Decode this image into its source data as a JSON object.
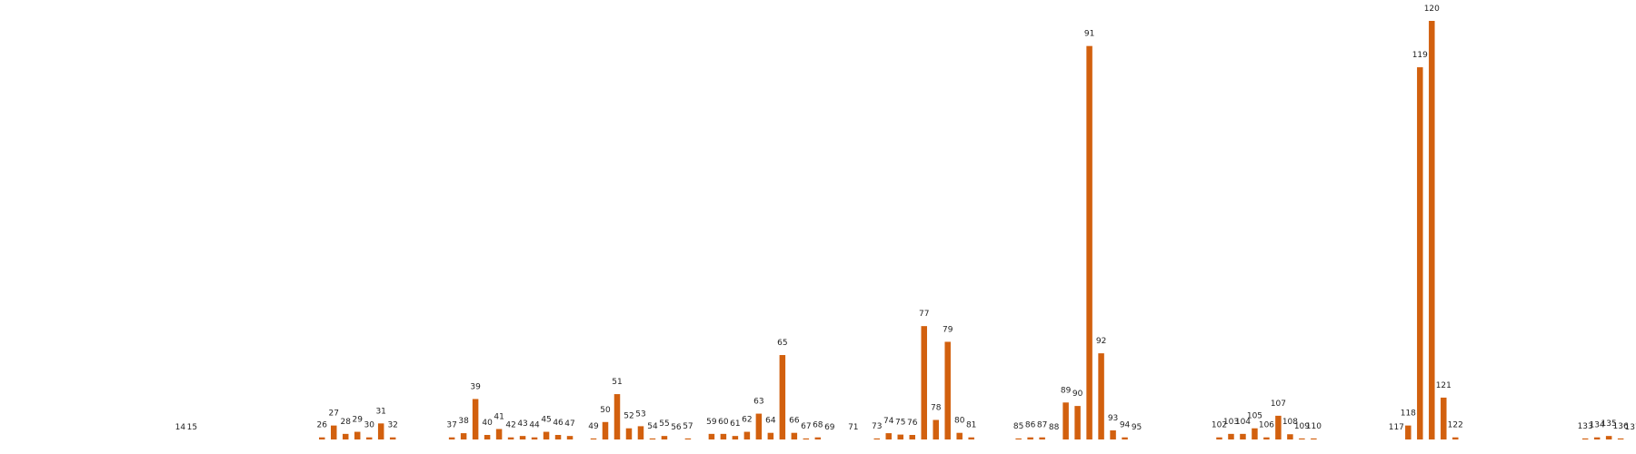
{
  "chart_data": {
    "type": "bar",
    "title": "",
    "xlabel": "",
    "ylabel": "",
    "axes_visible": false,
    "grid": false,
    "bar_color": "#d2600e",
    "x_range": [
      0,
      139
    ],
    "ylim": [
      0,
      120
    ],
    "x": [
      14,
      15,
      26,
      27,
      28,
      29,
      30,
      31,
      32,
      37,
      38,
      39,
      40,
      41,
      42,
      43,
      44,
      45,
      46,
      47,
      49,
      50,
      51,
      52,
      53,
      54,
      55,
      56,
      57,
      59,
      60,
      61,
      62,
      63,
      64,
      65,
      66,
      67,
      68,
      69,
      71,
      73,
      74,
      75,
      76,
      77,
      78,
      79,
      80,
      81,
      85,
      86,
      87,
      88,
      89,
      90,
      91,
      92,
      93,
      94,
      95,
      102,
      103,
      104,
      105,
      106,
      107,
      108,
      109,
      110,
      117,
      118,
      119,
      120,
      121,
      122,
      133,
      134,
      135,
      136,
      137,
      138,
      139
    ],
    "values": [
      0,
      0,
      0.6,
      4,
      1.6,
      2.2,
      0.6,
      4.6,
      0.6,
      0.6,
      1.8,
      11.6,
      1.3,
      3,
      0.6,
      1,
      0.6,
      2.2,
      1.3,
      1,
      0.3,
      5,
      13,
      3.2,
      3.8,
      0.3,
      1,
      0,
      0.3,
      1.6,
      1.6,
      1,
      2.2,
      7.4,
      1.9,
      24.2,
      1.9,
      0.3,
      0.6,
      0,
      0,
      0.3,
      1.8,
      1.4,
      1.3,
      32.5,
      5.6,
      28,
      1.9,
      0.6,
      0.3,
      0.6,
      0.6,
      0,
      10.6,
      9.6,
      112.8,
      24.7,
      2.6,
      0.6,
      0,
      0.6,
      1.6,
      1.6,
      3.2,
      0.6,
      6.8,
      1.5,
      0.3,
      0.3,
      0,
      4,
      106.7,
      120,
      12,
      0.6,
      0.3,
      0.6,
      1,
      0.3,
      0,
      0,
      0
    ]
  }
}
